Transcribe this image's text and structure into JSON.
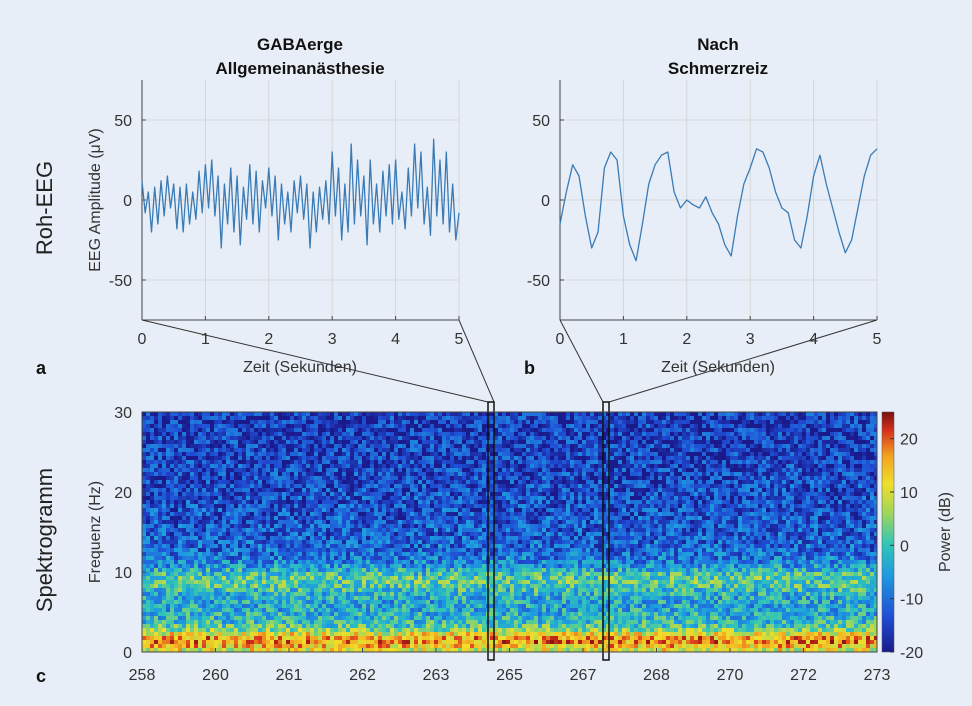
{
  "figure": {
    "row_labels": {
      "raw": "Roh-EEG",
      "spectrogram": "Spektrogramm"
    },
    "panel_letters": [
      "a",
      "b",
      "c"
    ]
  },
  "chart_data": [
    {
      "type": "line",
      "panel": "a",
      "title": [
        "GABAerge",
        "Allgemeinanästhesie"
      ],
      "xlabel": "Zeit (Sekunden)",
      "ylabel": "EEG Amplitude (μV)",
      "xlim": [
        0,
        5
      ],
      "ylim": [
        -75,
        75
      ],
      "xticks": [
        0,
        1,
        2,
        3,
        4,
        5
      ],
      "yticks": [
        -50,
        0,
        50
      ],
      "grid": true,
      "color": "#3a7bb5",
      "series": [
        {
          "x": [
            0,
            0.05,
            0.1,
            0.15,
            0.2,
            0.25,
            0.3,
            0.35,
            0.4,
            0.45,
            0.5,
            0.55,
            0.6,
            0.65,
            0.7,
            0.75,
            0.8,
            0.85,
            0.9,
            0.95,
            1,
            1.05,
            1.1,
            1.15,
            1.2,
            1.25,
            1.3,
            1.35,
            1.4,
            1.45,
            1.5,
            1.55,
            1.6,
            1.65,
            1.7,
            1.75,
            1.8,
            1.85,
            1.9,
            1.95,
            2,
            2.05,
            2.1,
            2.15,
            2.2,
            2.25,
            2.3,
            2.35,
            2.4,
            2.45,
            2.5,
            2.55,
            2.6,
            2.65,
            2.7,
            2.75,
            2.8,
            2.85,
            2.9,
            2.95,
            3,
            3.05,
            3.1,
            3.15,
            3.2,
            3.25,
            3.3,
            3.35,
            3.4,
            3.45,
            3.5,
            3.55,
            3.6,
            3.65,
            3.7,
            3.75,
            3.8,
            3.85,
            3.9,
            3.95,
            4,
            4.05,
            4.1,
            4.15,
            4.2,
            4.25,
            4.3,
            4.35,
            4.4,
            4.45,
            4.5,
            4.55,
            4.6,
            4.65,
            4.7,
            4.75,
            4.8,
            4.85,
            4.9,
            4.95,
            5
          ],
          "y": [
            12,
            -8,
            5,
            -20,
            8,
            -15,
            12,
            -10,
            15,
            -5,
            10,
            -18,
            8,
            -20,
            10,
            -15,
            5,
            -12,
            18,
            -8,
            22,
            -5,
            25,
            -10,
            15,
            -30,
            10,
            -15,
            20,
            -20,
            15,
            -28,
            8,
            -12,
            22,
            -15,
            18,
            -20,
            12,
            -5,
            20,
            -10,
            15,
            -25,
            10,
            -15,
            5,
            -20,
            12,
            -8,
            15,
            -12,
            10,
            -30,
            5,
            -20,
            8,
            -12,
            12,
            -15,
            30,
            -10,
            20,
            -25,
            10,
            -20,
            35,
            -15,
            25,
            -10,
            15,
            -28,
            25,
            -15,
            10,
            -20,
            18,
            -10,
            22,
            -15,
            25,
            -12,
            5,
            -18,
            20,
            -10,
            35,
            -5,
            30,
            -15,
            8,
            -22,
            38,
            -10,
            25,
            -15,
            30,
            -20,
            10,
            -25,
            -8
          ]
        }
      ]
    },
    {
      "type": "line",
      "panel": "b",
      "title": [
        "Nach",
        "Schmerzreiz"
      ],
      "xlabel": "Zeit (Sekunden)",
      "ylabel": "",
      "xlim": [
        0,
        5
      ],
      "ylim": [
        -75,
        75
      ],
      "xticks": [
        0,
        1,
        2,
        3,
        4,
        5
      ],
      "yticks": [
        -50,
        0,
        50
      ],
      "grid": true,
      "color": "#3a7bb5",
      "series": [
        {
          "x": [
            0,
            0.1,
            0.2,
            0.3,
            0.4,
            0.5,
            0.6,
            0.7,
            0.8,
            0.9,
            1,
            1.1,
            1.2,
            1.3,
            1.4,
            1.5,
            1.6,
            1.7,
            1.8,
            1.9,
            2,
            2.1,
            2.2,
            2.3,
            2.4,
            2.5,
            2.6,
            2.7,
            2.8,
            2.9,
            3,
            3.1,
            3.2,
            3.3,
            3.4,
            3.5,
            3.6,
            3.7,
            3.8,
            3.9,
            4,
            4.1,
            4.2,
            4.3,
            4.4,
            4.5,
            4.6,
            4.7,
            4.8,
            4.9,
            5
          ],
          "y": [
            -15,
            5,
            22,
            15,
            -10,
            -30,
            -20,
            20,
            30,
            25,
            -10,
            -28,
            -38,
            -15,
            10,
            22,
            28,
            30,
            5,
            -5,
            0,
            -3,
            -5,
            2,
            -8,
            -15,
            -28,
            -35,
            -10,
            10,
            20,
            32,
            30,
            20,
            5,
            -5,
            -8,
            -25,
            -30,
            -10,
            15,
            28,
            10,
            -5,
            -20,
            -33,
            -25,
            -5,
            15,
            28,
            32
          ]
        }
      ]
    },
    {
      "type": "heatmap",
      "panel": "c",
      "xlabel": "",
      "ylabel": "Frequenz (Hz)",
      "xticks": [
        "258",
        "260",
        "261",
        "262",
        "263",
        "265",
        "267",
        "268",
        "270",
        "272",
        "273"
      ],
      "yticks": [
        0,
        10,
        20,
        30
      ],
      "ylim": [
        0,
        30
      ],
      "colorbar": {
        "label": "Power (dB)",
        "ticks": [
          20,
          10,
          0,
          -10,
          -20
        ],
        "range": [
          -20,
          25
        ]
      },
      "description": "Power concentrated below ~3 Hz (red) and around 8-10 Hz (orange/yellow); decreasing power with frequency toward blue above ~20 Hz",
      "highlight_windows_tick_index": [
        5.85,
        6.85
      ]
    }
  ]
}
